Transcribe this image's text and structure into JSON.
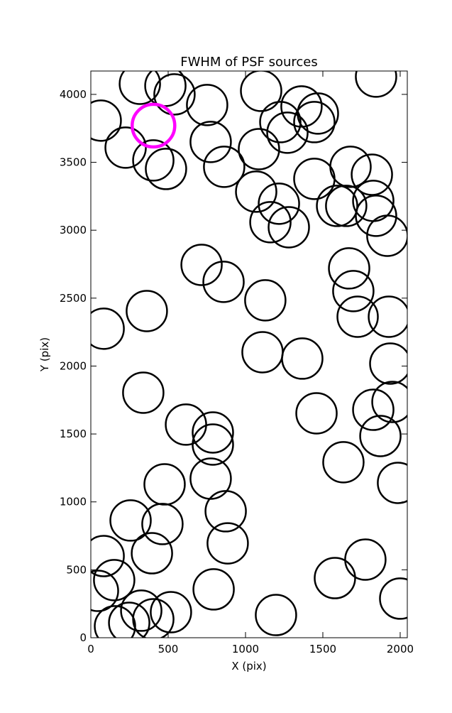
{
  "chart_data": {
    "type": "scatter",
    "title": "FWHM of PSF sources",
    "xlabel": "X (pix)",
    "ylabel": "Y (pix)",
    "xlim": [
      0,
      2046
    ],
    "ylim": [
      0,
      4172
    ],
    "xticks": [
      0,
      500,
      1000,
      1500,
      2000
    ],
    "yticks": [
      0,
      500,
      1000,
      1500,
      2000,
      2500,
      3000,
      3500,
      4000
    ],
    "series": [
      {
        "color": "#000000",
        "x": [
          64,
          317,
          482,
          541,
          752,
          1101,
          1362,
          1468,
          1445,
          1225,
          1271,
          1844,
          225,
          404,
          486,
          775,
          862,
          1087,
          1445,
          1679,
          1817,
          1069,
          1216,
          1161,
          1280,
          1592,
          1651,
          1826,
          1844,
          1917,
          716,
          858,
          1670,
          1697,
          1725,
          1927,
          1128,
          362,
          83,
          1110,
          1367,
          1936,
          339,
          1459,
          1826,
          1950,
          1872,
          615,
          789,
          789,
          1633,
          1986,
          477,
          775,
          872,
          257,
          463,
          885,
          83,
          395,
          1775,
          151,
          46,
          794,
          1578,
          2000,
          1197,
          518,
          326,
          404,
          248,
          156
        ],
        "y": [
          3807,
          4078,
          4063,
          4000,
          3922,
          4026,
          3911,
          3859,
          3796,
          3796,
          3718,
          4131,
          3608,
          3514,
          3451,
          3650,
          3467,
          3597,
          3378,
          3467,
          3409,
          3284,
          3195,
          3059,
          3022,
          3179,
          3179,
          3216,
          3106,
          2959,
          2745,
          2620,
          2719,
          2552,
          2363,
          2363,
          2484,
          2405,
          2275,
          2102,
          2055,
          2018,
          1804,
          1652,
          1678,
          1736,
          1485,
          1569,
          1511,
          1422,
          1292,
          1140,
          1129,
          1171,
          931,
          863,
          837,
          695,
          601,
          622,
          575,
          424,
          345,
          356,
          439,
          288,
          167,
          188,
          199,
          136,
          110,
          84
        ]
      },
      {
        "color": "#ff00ff",
        "x": [
          405
        ],
        "y": [
          3770
        ]
      }
    ]
  }
}
